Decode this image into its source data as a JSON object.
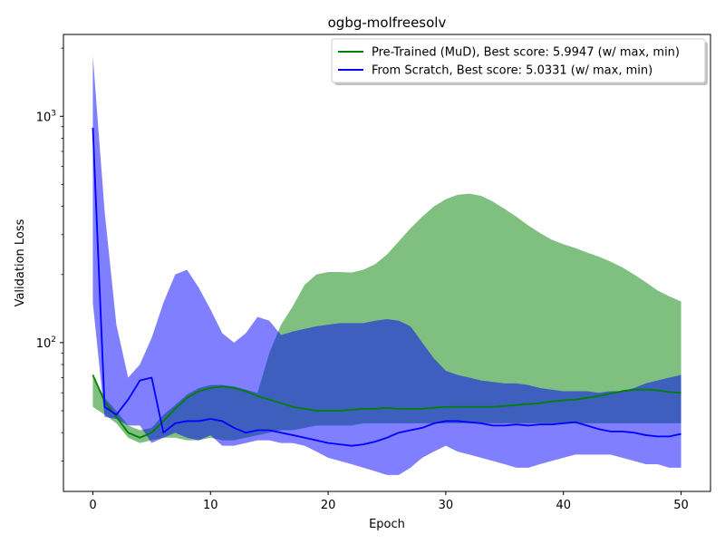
{
  "chart_data": {
    "type": "line",
    "title": "ogbg-molfreesolv",
    "xlabel": "Epoch",
    "ylabel": "Validation Loss",
    "xlim": [
      -2.5,
      52.5
    ],
    "ylim": [
      22,
      2300
    ],
    "yscale": "log",
    "grid": false,
    "legend_position": "top-right",
    "x_ticks": [
      0,
      10,
      20,
      30,
      40,
      50
    ],
    "y_major_ticks": [
      100,
      1000
    ],
    "y_major_tick_labels": [
      "10^2",
      "10^3"
    ],
    "y_minor_ticks": [
      30,
      40,
      50,
      60,
      70,
      80,
      90,
      200,
      300,
      400,
      500,
      600,
      700,
      800,
      900,
      2000
    ],
    "series": [
      {
        "name": "Pre-Trained (MuD), Best score: 5.9947 (w/ max, min)",
        "color": "#008000",
        "fill_color": "#008000",
        "x": [
          0,
          1,
          2,
          3,
          4,
          5,
          6,
          7,
          8,
          9,
          10,
          11,
          12,
          13,
          14,
          15,
          16,
          17,
          18,
          19,
          20,
          21,
          22,
          23,
          24,
          25,
          26,
          27,
          28,
          29,
          30,
          31,
          32,
          33,
          34,
          35,
          36,
          37,
          38,
          39,
          40,
          41,
          42,
          43,
          44,
          45,
          46,
          47,
          48,
          49,
          50
        ],
        "mean": [
          72,
          55,
          47,
          40,
          38,
          40,
          45,
          51,
          57,
          61,
          63,
          64,
          63,
          61,
          58,
          56,
          54,
          52,
          51,
          50,
          50,
          50,
          50.5,
          51,
          51,
          51.5,
          51,
          51,
          51,
          51.5,
          52,
          52,
          52,
          52,
          52,
          52.5,
          53,
          53.5,
          54,
          55,
          55.5,
          56,
          57,
          58,
          59.5,
          61,
          62,
          62,
          61.5,
          60.5,
          60
        ],
        "max": [
          72,
          57,
          50,
          43,
          41,
          42,
          48,
          53,
          59,
          63,
          65,
          65,
          64,
          62,
          60,
          90,
          120,
          145,
          180,
          200,
          205,
          205,
          204,
          210,
          222,
          245,
          280,
          320,
          360,
          400,
          430,
          450,
          455,
          445,
          420,
          390,
          360,
          330,
          305,
          285,
          272,
          262,
          250,
          240,
          228,
          215,
          200,
          185,
          170,
          160,
          152
        ],
        "min": [
          52,
          48,
          44,
          38,
          36,
          37,
          38,
          38,
          37,
          37,
          38,
          37,
          37,
          38,
          39,
          40,
          41,
          41,
          42,
          43,
          43,
          43,
          43,
          44,
          44,
          44,
          44,
          44,
          44,
          44,
          44,
          44,
          44,
          44,
          44,
          44,
          44,
          44,
          44,
          44,
          44,
          44,
          44,
          44,
          44,
          44,
          44,
          44,
          44,
          44,
          44
        ]
      },
      {
        "name": "From Scratch, Best score: 5.0331 (w/ max, min)",
        "color": "#0000ff",
        "fill_color": "#0000ff",
        "x": [
          0,
          1,
          2,
          3,
          4,
          5,
          6,
          7,
          8,
          9,
          10,
          11,
          12,
          13,
          14,
          15,
          16,
          17,
          18,
          19,
          20,
          21,
          22,
          23,
          24,
          25,
          26,
          27,
          28,
          29,
          30,
          31,
          32,
          33,
          34,
          35,
          36,
          37,
          38,
          39,
          40,
          41,
          42,
          43,
          44,
          45,
          46,
          47,
          48,
          49,
          50
        ],
        "mean": [
          890,
          52,
          48,
          56,
          68,
          70,
          40,
          44,
          45,
          45,
          46,
          45,
          42,
          40,
          41,
          41,
          40,
          39,
          38,
          37,
          36,
          35.5,
          35,
          35.5,
          36.5,
          38,
          40,
          41,
          42,
          44,
          45,
          45,
          44.5,
          44,
          43,
          43,
          43.5,
          43,
          43.5,
          43.5,
          44,
          44.5,
          43,
          41.5,
          40.5,
          40.5,
          40,
          39,
          38.5,
          38.5,
          39.5
        ],
        "max": [
          1850,
          380,
          120,
          70,
          80,
          105,
          150,
          200,
          210,
          175,
          140,
          110,
          100,
          110,
          130,
          125,
          108,
          112,
          115,
          118,
          120,
          122,
          122,
          122,
          125,
          127,
          125,
          118,
          100,
          85,
          75,
          72,
          70,
          68,
          67,
          66,
          66,
          65,
          63,
          62,
          61,
          61,
          61,
          60,
          61,
          61,
          63,
          66,
          68,
          70,
          72
        ],
        "min": [
          150,
          47,
          46,
          43,
          43,
          36,
          38,
          40,
          38,
          37,
          39,
          35,
          35,
          36,
          37,
          37,
          36,
          36,
          35,
          33,
          31,
          30,
          29,
          28,
          27,
          26,
          26,
          28,
          31,
          33,
          35,
          33,
          32,
          31,
          30,
          29,
          28,
          28,
          29,
          30,
          31,
          32,
          32,
          32,
          32,
          31,
          30,
          29,
          29,
          28,
          28
        ]
      }
    ]
  }
}
